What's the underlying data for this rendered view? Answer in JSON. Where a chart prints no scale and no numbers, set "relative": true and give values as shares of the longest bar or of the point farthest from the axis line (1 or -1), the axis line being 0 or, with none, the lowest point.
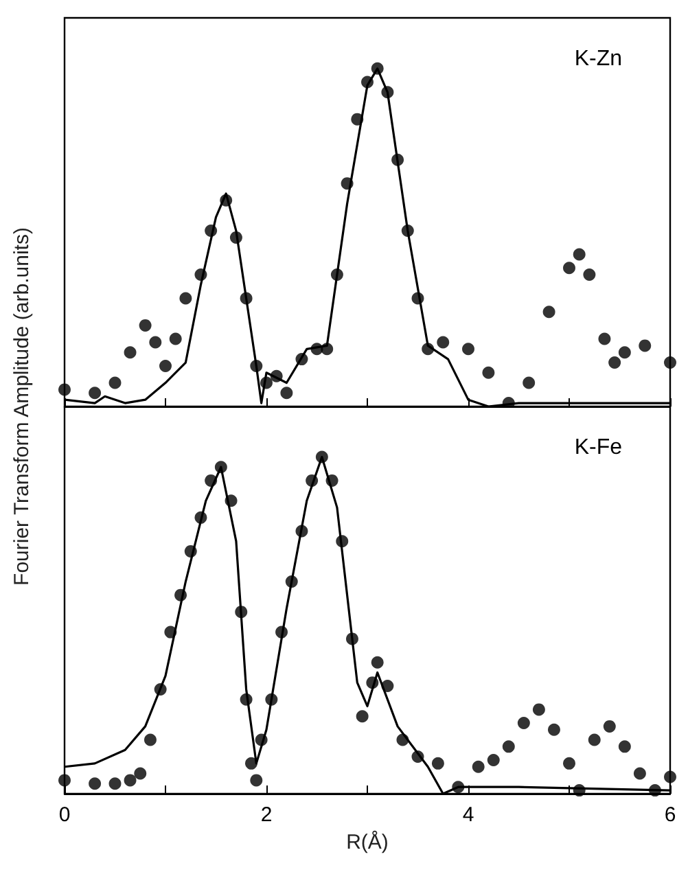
{
  "chart_data": [
    {
      "type": "line",
      "ylabel": "Fourier Transform Amplitude (arb.units)",
      "annotations": [
        "K-Zn"
      ],
      "relative": true,
      "xlim": [
        0,
        6
      ],
      "xticks": [
        0,
        {
          "value": 1,
          "label": null
        },
        2,
        {
          "value": 3,
          "label": null
        },
        4,
        {
          "value": 5,
          "label": null
        },
        6
      ],
      "tick_labels": false,
      "series": [
        {
          "type": "scatter",
          "marker": "circle",
          "color": "#000000",
          "x": [
            0,
            0.3,
            0.5,
            0.65,
            0.8,
            0.9,
            1.0,
            1.1,
            1.2,
            1.35,
            1.45,
            1.6,
            1.7,
            1.8,
            1.9,
            2.0,
            2.1,
            2.2,
            2.35,
            2.5,
            2.6,
            2.7,
            2.8,
            2.9,
            3.0,
            3.1,
            3.2,
            3.3,
            3.4,
            3.5,
            3.6,
            3.75,
            4.0,
            4.2,
            4.4,
            4.6,
            4.8,
            5.0,
            5.1,
            5.2,
            5.35,
            5.45,
            5.55,
            5.75,
            6.0
          ],
          "values": [
            0.05,
            0.04,
            0.07,
            0.16,
            0.24,
            0.19,
            0.12,
            0.2,
            0.32,
            0.39,
            0.52,
            0.61,
            0.5,
            0.32,
            0.12,
            0.07,
            0.09,
            0.04,
            0.14,
            0.17,
            0.17,
            0.39,
            0.66,
            0.85,
            0.96,
            1,
            0.93,
            0.73,
            0.52,
            0.32,
            0.17,
            0.19,
            0.17,
            0.1,
            0.01,
            0.07,
            0.28,
            0.41,
            0.45,
            0.39,
            0.2,
            0.13,
            0.16,
            0.18,
            0.13
          ]
        },
        {
          "type": "line",
          "color": "#000000",
          "x": [
            0,
            0.3,
            0.4,
            0.6,
            0.8,
            1.0,
            1.2,
            1.35,
            1.5,
            1.6,
            1.7,
            1.8,
            1.9,
            1.95,
            2.0,
            2.2,
            2.4,
            2.6,
            2.8,
            3.0,
            3.1,
            3.2,
            3.4,
            3.6,
            3.8,
            4.0,
            4.2,
            4.5,
            5.0,
            6.0
          ],
          "values": [
            0.02,
            0.01,
            0.03,
            0.01,
            0.02,
            0.07,
            0.13,
            0.36,
            0.56,
            0.63,
            0.52,
            0.32,
            0.12,
            0.01,
            0.1,
            0.07,
            0.17,
            0.18,
            0.6,
            0.95,
            1,
            0.93,
            0.52,
            0.18,
            0.14,
            0.02,
            0,
            0.01,
            0.01,
            0.01
          ]
        }
      ]
    },
    {
      "type": "line",
      "xlabel": "R(Å)",
      "annotations": [
        "K-Fe"
      ],
      "relative": true,
      "xlim": [
        0,
        6
      ],
      "xticks": [
        0,
        {
          "value": 1,
          "label": null
        },
        2,
        {
          "value": 3,
          "label": null
        },
        4,
        {
          "value": 5,
          "label": null
        },
        6
      ],
      "tick_labels": "x",
      "series": [
        {
          "type": "scatter",
          "marker": "circle",
          "color": "#000000",
          "x": [
            0,
            0.3,
            0.5,
            0.65,
            0.75,
            0.85,
            0.95,
            1.05,
            1.15,
            1.25,
            1.35,
            1.45,
            1.55,
            1.65,
            1.75,
            1.8,
            1.85,
            1.9,
            1.95,
            2.05,
            2.15,
            2.25,
            2.35,
            2.45,
            2.55,
            2.65,
            2.75,
            2.85,
            2.95,
            3.05,
            3.1,
            3.2,
            3.35,
            3.5,
            3.7,
            3.9,
            4.1,
            4.25,
            4.4,
            4.55,
            4.7,
            4.85,
            5.0,
            5.1,
            5.25,
            5.4,
            5.55,
            5.7,
            5.85,
            6.0
          ],
          "values": [
            0.04,
            0.03,
            0.03,
            0.04,
            0.06,
            0.16,
            0.31,
            0.48,
            0.59,
            0.72,
            0.82,
            0.93,
            0.97,
            0.87,
            0.54,
            0.28,
            0.09,
            0.04,
            0.16,
            0.28,
            0.48,
            0.63,
            0.78,
            0.93,
            1,
            0.93,
            0.75,
            0.46,
            0.23,
            0.33,
            0.39,
            0.32,
            0.16,
            0.11,
            0.09,
            0.02,
            0.08,
            0.1,
            0.14,
            0.21,
            0.25,
            0.19,
            0.09,
            0.01,
            0.16,
            0.2,
            0.14,
            0.06,
            0.01,
            0.05
          ]
        },
        {
          "type": "line",
          "color": "#000000",
          "x": [
            0,
            0.3,
            0.6,
            0.8,
            1.0,
            1.2,
            1.4,
            1.55,
            1.7,
            1.8,
            1.9,
            2.0,
            2.2,
            2.4,
            2.55,
            2.7,
            2.9,
            3.0,
            3.1,
            3.3,
            3.6,
            3.75,
            3.9,
            4.5,
            6.0
          ],
          "values": [
            0.08,
            0.09,
            0.13,
            0.2,
            0.35,
            0.63,
            0.87,
            0.97,
            0.75,
            0.31,
            0.09,
            0.19,
            0.55,
            0.87,
            1,
            0.85,
            0.33,
            0.26,
            0.36,
            0.2,
            0.08,
            0,
            0.02,
            0.02,
            0.01
          ]
        }
      ]
    }
  ]
}
